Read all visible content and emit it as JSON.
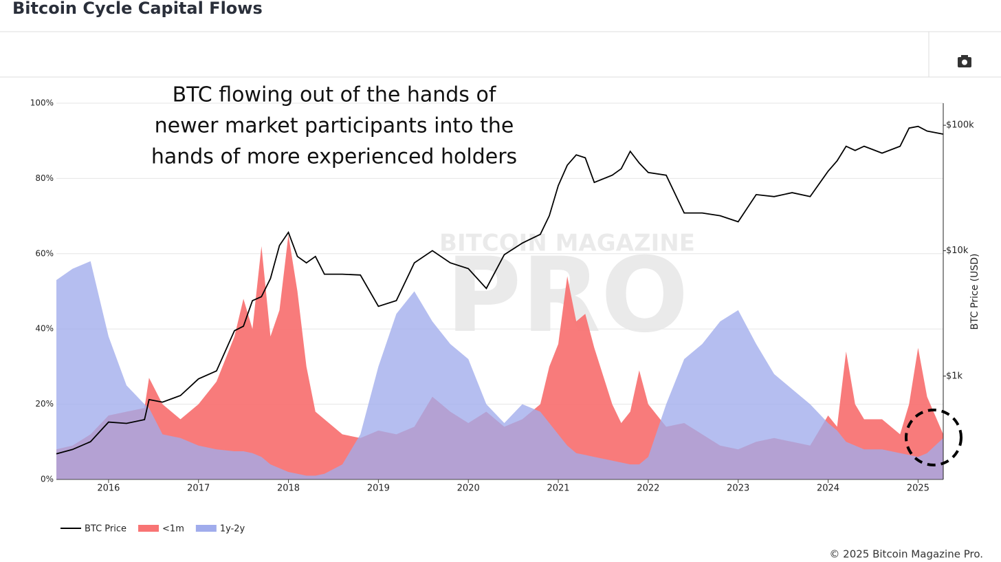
{
  "header": {
    "title": "Bitcoin Cycle Capital Flows"
  },
  "footer": {
    "copyright": "© 2025 Bitcoin Magazine Pro."
  },
  "chart_data": {
    "type": "area",
    "annotation": [
      "BTC flowing out of the hands of",
      "newer market participants into the",
      "hands of more experienced holders"
    ],
    "watermark": [
      "BITCOIN MAGAZINE",
      "PRO"
    ],
    "y2label": "BTC Price (USD)",
    "x": [
      2015.42,
      2015.6,
      2015.8,
      2016.0,
      2016.2,
      2016.4,
      2016.45,
      2016.6,
      2016.8,
      2017.0,
      2017.2,
      2017.4,
      2017.5,
      2017.6,
      2017.7,
      2017.8,
      2017.9,
      2018.0,
      2018.1,
      2018.2,
      2018.3,
      2018.4,
      2018.6,
      2018.8,
      2019.0,
      2019.2,
      2019.4,
      2019.6,
      2019.8,
      2020.0,
      2020.2,
      2020.4,
      2020.6,
      2020.8,
      2020.9,
      2021.0,
      2021.1,
      2021.2,
      2021.3,
      2021.4,
      2021.6,
      2021.7,
      2021.8,
      2021.9,
      2022.0,
      2022.2,
      2022.4,
      2022.6,
      2022.8,
      2023.0,
      2023.2,
      2023.4,
      2023.6,
      2023.8,
      2024.0,
      2024.1,
      2024.2,
      2024.3,
      2024.4,
      2024.6,
      2024.8,
      2024.9,
      2025.0,
      2025.1,
      2025.28
    ],
    "series": [
      {
        "name": "BTC Price",
        "color": "#000000",
        "axis": "y2",
        "values": [
          240,
          260,
          300,
          430,
          420,
          450,
          650,
          620,
          700,
          950,
          1100,
          2300,
          2500,
          4000,
          4300,
          6000,
          11000,
          14000,
          9000,
          8000,
          9000,
          6500,
          6500,
          6400,
          3600,
          4000,
          8000,
          10000,
          8000,
          7200,
          5000,
          9300,
          11500,
          13500,
          19000,
          33000,
          48000,
          58000,
          55000,
          35000,
          40000,
          45000,
          62000,
          50000,
          42000,
          40000,
          20000,
          20000,
          19000,
          17000,
          28000,
          27000,
          29000,
          27000,
          43000,
          52000,
          68000,
          63000,
          68000,
          60000,
          68000,
          95000,
          98000,
          90000,
          85000
        ]
      },
      {
        "name": "<1m",
        "color": "#f87474",
        "values": [
          8,
          9,
          12,
          17,
          18,
          19,
          27,
          20,
          16,
          20,
          26,
          38,
          48,
          40,
          62,
          38,
          45,
          65,
          50,
          30,
          18,
          16,
          12,
          11,
          13,
          12,
          14,
          22,
          18,
          15,
          18,
          14,
          16,
          20,
          30,
          36,
          54,
          42,
          44,
          35,
          20,
          15,
          18,
          29,
          20,
          14,
          15,
          12,
          9,
          8,
          10,
          11,
          10,
          9,
          17,
          14,
          34,
          20,
          16,
          16,
          12,
          20,
          35,
          22,
          12
        ]
      },
      {
        "name": "1y-2y",
        "color": "#a0acec",
        "values": [
          53,
          56,
          58,
          38,
          25,
          20,
          19,
          12,
          11,
          9,
          8,
          7.5,
          7.5,
          7,
          6,
          4,
          3,
          2,
          1.5,
          1,
          1,
          1.5,
          4,
          12,
          30,
          44,
          50,
          42,
          36,
          32,
          20,
          15,
          20,
          18,
          15,
          12,
          9,
          7,
          6.5,
          6,
          5,
          4.5,
          4,
          4,
          6,
          20,
          32,
          36,
          42,
          45,
          36,
          28,
          24,
          20,
          15,
          13,
          10,
          9,
          8,
          8,
          7,
          6.5,
          6,
          7,
          11
        ]
      }
    ],
    "xlim": [
      2015.42,
      2025.28
    ],
    "xticks": [
      2016,
      2017,
      2018,
      2019,
      2020,
      2021,
      2022,
      2023,
      2024,
      2025
    ],
    "ylim": [
      0,
      100
    ],
    "yticks": [
      {
        "value": 0,
        "label": "0%"
      },
      {
        "value": 20,
        "label": "20%"
      },
      {
        "value": 40,
        "label": "40%"
      },
      {
        "value": 60,
        "label": "60%"
      },
      {
        "value": 80,
        "label": "80%"
      },
      {
        "value": 100,
        "label": "100%"
      }
    ],
    "y2lim": [
      150,
      150000
    ],
    "y2scale": "log",
    "y2ticks": [
      {
        "value": 1000,
        "label": "$1k"
      },
      {
        "value": 10000,
        "label": "$10k"
      },
      {
        "value": 100000,
        "label": "$100k"
      }
    ],
    "grid": true,
    "legend": "bottom-left"
  }
}
